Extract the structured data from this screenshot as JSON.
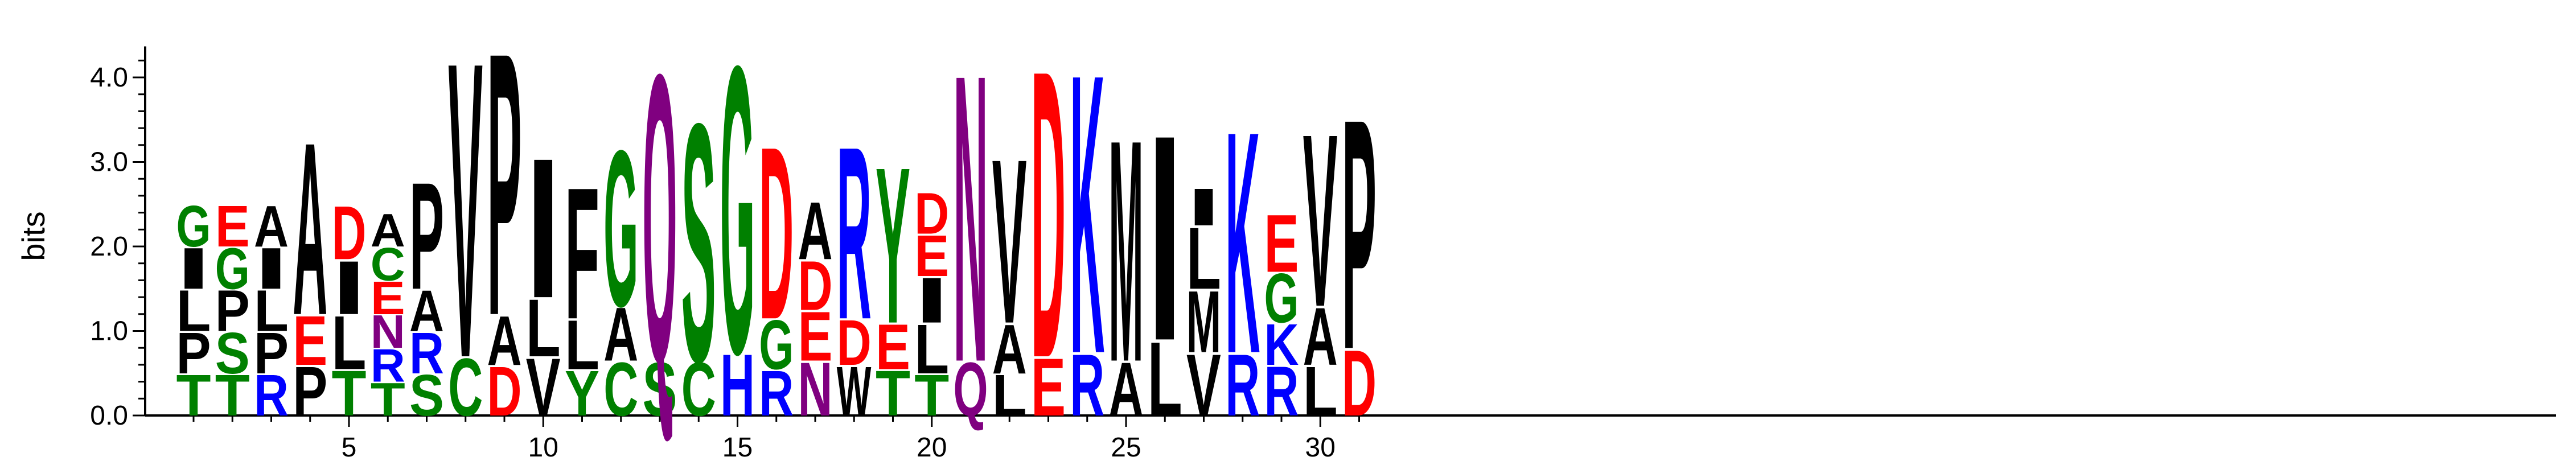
{
  "chart_data": {
    "type": "sequence-logo",
    "ylabel": "bits",
    "ylim": [
      0,
      4.3
    ],
    "y_ticks": [
      "0.0",
      "1.0",
      "2.0",
      "3.0",
      "4.0"
    ],
    "y_tick_values": [
      0,
      1,
      2,
      3,
      4
    ],
    "x_range": [
      1,
      31
    ],
    "x_ticks": [
      "5",
      "10",
      "15",
      "20",
      "25",
      "30"
    ],
    "x_tick_values": [
      5,
      10,
      15,
      20,
      25,
      30
    ],
    "colors": {
      "A": "#000000",
      "C": "#008000",
      "D": "#ff0000",
      "E": "#ff0000",
      "F": "#000000",
      "G": "#008000",
      "H": "#0000ff",
      "I": "#000000",
      "K": "#0000ff",
      "L": "#000000",
      "M": "#000000",
      "N": "#800080",
      "P": "#000000",
      "Q": "#800080",
      "R": "#0000ff",
      "S": "#008000",
      "T": "#008000",
      "V": "#000000",
      "W": "#000000",
      "Y": "#008000"
    },
    "positions": [
      {
        "pos": 1,
        "letters": [
          [
            "T",
            0.5
          ],
          [
            "P",
            0.5
          ],
          [
            "L",
            0.5
          ],
          [
            "I",
            0.5
          ],
          [
            "G",
            0.5
          ]
        ]
      },
      {
        "pos": 2,
        "letters": [
          [
            "T",
            0.5
          ],
          [
            "S",
            0.5
          ],
          [
            "P",
            0.5
          ],
          [
            "G",
            0.5
          ],
          [
            "E",
            0.5
          ]
        ]
      },
      {
        "pos": 3,
        "letters": [
          [
            "R",
            0.5
          ],
          [
            "P",
            0.5
          ],
          [
            "L",
            0.5
          ],
          [
            "I",
            0.5
          ],
          [
            "A",
            0.5
          ]
        ]
      },
      {
        "pos": 4,
        "letters": [
          [
            "P",
            0.6
          ],
          [
            "E",
            0.6
          ],
          [
            "A",
            2.1
          ]
        ]
      },
      {
        "pos": 5,
        "letters": [
          [
            "T",
            0.55
          ],
          [
            "L",
            0.65
          ],
          [
            "I",
            0.65
          ],
          [
            "D",
            0.65
          ]
        ]
      },
      {
        "pos": 6,
        "letters": [
          [
            "T",
            0.4
          ],
          [
            "R",
            0.4
          ],
          [
            "N",
            0.4
          ],
          [
            "E",
            0.4
          ],
          [
            "C",
            0.4
          ],
          [
            "A",
            0.4
          ]
        ]
      },
      {
        "pos": 7,
        "letters": [
          [
            "S",
            0.5
          ],
          [
            "R",
            0.5
          ],
          [
            "A",
            0.5
          ],
          [
            "P",
            1.3
          ]
        ]
      },
      {
        "pos": 8,
        "letters": [
          [
            "C",
            0.7
          ],
          [
            "V",
            3.6
          ]
        ]
      },
      {
        "pos": 9,
        "letters": [
          [
            "D",
            0.6
          ],
          [
            "A",
            0.6
          ],
          [
            "P",
            3.2
          ]
        ]
      },
      {
        "pos": 10,
        "letters": [
          [
            "V",
            0.7
          ],
          [
            "L",
            0.7
          ],
          [
            "I",
            1.7
          ]
        ]
      },
      {
        "pos": 11,
        "letters": [
          [
            "Y",
            0.55
          ],
          [
            "L",
            0.6
          ],
          [
            "F",
            1.6
          ]
        ]
      },
      {
        "pos": 12,
        "letters": [
          [
            "C",
            0.65
          ],
          [
            "A",
            0.65
          ],
          [
            "G",
            1.9
          ]
        ]
      },
      {
        "pos": 13,
        "letters": [
          [
            "S",
            0.65
          ],
          [
            "Q",
            3.5
          ]
        ]
      },
      {
        "pos": 14,
        "letters": [
          [
            "C",
            0.65
          ],
          [
            "S",
            2.9
          ]
        ]
      },
      {
        "pos": 15,
        "letters": [
          [
            "H",
            0.75
          ],
          [
            "G",
            3.5
          ]
        ]
      },
      {
        "pos": 16,
        "letters": [
          [
            "R",
            0.55
          ],
          [
            "G",
            0.6
          ],
          [
            "D",
            2.1
          ]
        ]
      },
      {
        "pos": 17,
        "letters": [
          [
            "N",
            0.65
          ],
          [
            "E",
            0.6
          ],
          [
            "D",
            0.6
          ],
          [
            "A",
            0.7
          ]
        ]
      },
      {
        "pos": 18,
        "letters": [
          [
            "W",
            0.6
          ],
          [
            "D",
            0.55
          ],
          [
            "R",
            2.1
          ]
        ]
      },
      {
        "pos": 19,
        "letters": [
          [
            "T",
            0.55
          ],
          [
            "E",
            0.55
          ],
          [
            "Y",
            1.9
          ]
        ]
      },
      {
        "pos": 20,
        "letters": [
          [
            "T",
            0.5
          ],
          [
            "L",
            0.6
          ],
          [
            "I",
            0.55
          ],
          [
            "E",
            0.5
          ],
          [
            "D",
            0.5
          ]
        ]
      },
      {
        "pos": 21,
        "letters": [
          [
            "Q",
            0.65
          ],
          [
            "N",
            3.5
          ]
        ]
      },
      {
        "pos": 22,
        "letters": [
          [
            "L",
            0.5
          ],
          [
            "A",
            0.6
          ],
          [
            "V",
            2.0
          ]
        ]
      },
      {
        "pos": 23,
        "letters": [
          [
            "E",
            0.7
          ],
          [
            "D",
            3.5
          ]
        ]
      },
      {
        "pos": 24,
        "letters": [
          [
            "R",
            0.75
          ],
          [
            "K",
            3.4
          ]
        ]
      },
      {
        "pos": 25,
        "letters": [
          [
            "A",
            0.65
          ],
          [
            "M",
            2.7
          ]
        ]
      },
      {
        "pos": 26,
        "letters": [
          [
            "L",
            0.9
          ],
          [
            "I",
            2.5
          ]
        ]
      },
      {
        "pos": 27,
        "letters": [
          [
            "V",
            0.75
          ],
          [
            "M",
            0.75
          ],
          [
            "L",
            0.75
          ],
          [
            "I",
            0.45
          ]
        ]
      },
      {
        "pos": 28,
        "letters": [
          [
            "R",
            0.75
          ],
          [
            "K",
            2.7
          ]
        ]
      },
      {
        "pos": 29,
        "letters": [
          [
            "R",
            0.6
          ],
          [
            "K",
            0.5
          ],
          [
            "G",
            0.6
          ],
          [
            "E",
            0.7
          ]
        ]
      },
      {
        "pos": 30,
        "letters": [
          [
            "L",
            0.6
          ],
          [
            "A",
            0.7
          ],
          [
            "V",
            2.1
          ]
        ]
      },
      {
        "pos": 31,
        "letters": [
          [
            "D",
            0.8
          ],
          [
            "P",
            2.8
          ]
        ]
      }
    ]
  }
}
